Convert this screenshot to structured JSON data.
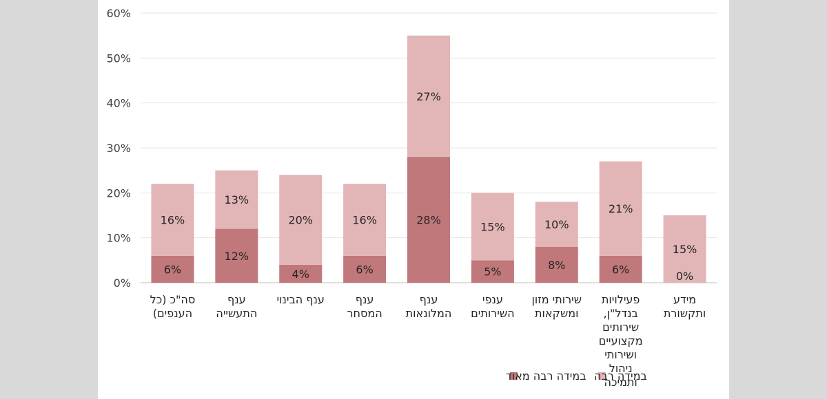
{
  "chart_data": {
    "type": "bar",
    "stacked": true,
    "categories": [
      [
        "סה\"כ (כל",
        "הענפים)"
      ],
      [
        "ענף",
        "התעשייה"
      ],
      [
        "ענף הבינוי"
      ],
      [
        "ענף",
        "המסחר"
      ],
      [
        "ענף",
        "המלונאות"
      ],
      [
        "ענפי",
        "השירותים"
      ],
      [
        "שירותי מזון",
        "ומשקאות"
      ],
      [
        "פעילויות",
        "בנדל\"ן,",
        "שירותים",
        "מקצועיים",
        "ושירותי",
        "ניהול",
        "ותמיכה"
      ],
      [
        "מידע",
        "ותקשורת"
      ]
    ],
    "series": [
      {
        "name": "במידה רבה מאוד",
        "color": "#c0787b",
        "values": [
          6,
          12,
          4,
          6,
          28,
          5,
          8,
          6,
          0
        ],
        "labels": [
          "6%",
          "12%",
          "4%",
          "6%",
          "28%",
          "5%",
          "8%",
          "6%",
          "0%"
        ]
      },
      {
        "name": "במידה רבה",
        "color": "#e2b5b7",
        "values": [
          16,
          13,
          20,
          16,
          27,
          15,
          10,
          21,
          15
        ],
        "labels": [
          "16%",
          "13%",
          "20%",
          "16%",
          "27%",
          "15%",
          "10%",
          "21%",
          "15%"
        ]
      }
    ],
    "ylim": [
      0,
      60
    ],
    "yticks": [
      "0%",
      "10%",
      "20%",
      "30%",
      "40%",
      "50%",
      "60%"
    ],
    "grid": true,
    "legend_position": "bottom"
  }
}
